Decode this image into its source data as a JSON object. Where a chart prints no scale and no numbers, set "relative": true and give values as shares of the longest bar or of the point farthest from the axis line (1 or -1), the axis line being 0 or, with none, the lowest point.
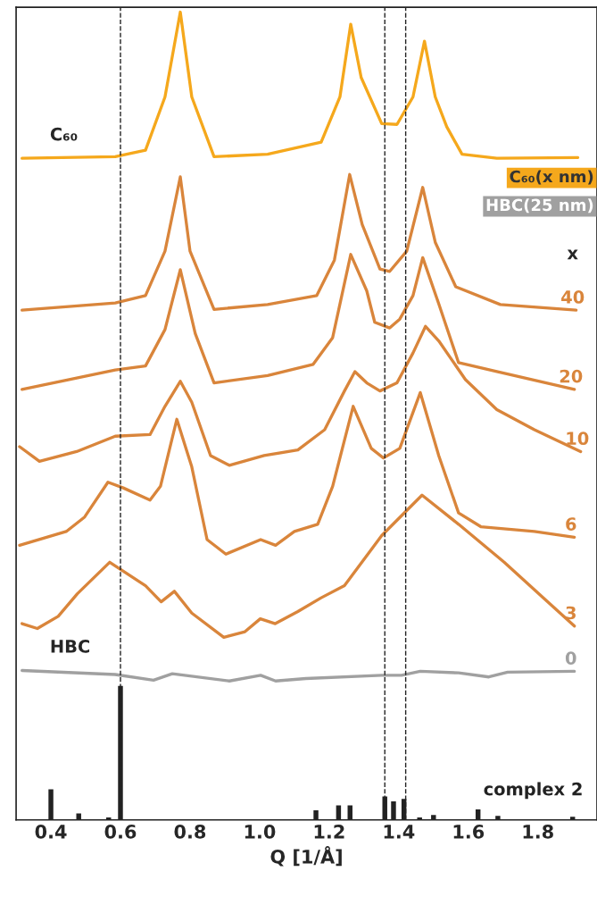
{
  "chart_data": {
    "type": "line",
    "relative": true,
    "xlabel": "Q [1/Å]",
    "xlim": [
      0.3,
      1.97
    ],
    "xticks": [
      {
        "value": 0.4,
        "label": "0.4"
      },
      {
        "value": 0.6,
        "label": "0.6"
      },
      {
        "value": 0.8,
        "label": "0.8"
      },
      {
        "value": 1.0,
        "label": "1.0"
      },
      {
        "value": 1.2,
        "label": "1.2"
      },
      {
        "value": 1.4,
        "label": "1.4"
      },
      {
        "value": 1.6,
        "label": "1.6"
      },
      {
        "value": 1.8,
        "label": "1.8"
      }
    ],
    "grid": false,
    "line_style": "solid",
    "marker": "none",
    "series": [
      {
        "color": "#f5a81c",
        "x": [
          0.317,
          0.585,
          0.672,
          0.728,
          0.772,
          0.805,
          0.869,
          1.023,
          1.177,
          1.231,
          1.262,
          1.292,
          1.351,
          1.395,
          1.441,
          1.474,
          1.505,
          1.538,
          1.582,
          1.682,
          1.915
        ],
        "values": [
          0.819,
          0.821,
          0.829,
          0.895,
          1.0,
          0.895,
          0.821,
          0.824,
          0.839,
          0.895,
          0.985,
          0.919,
          0.862,
          0.861,
          0.895,
          0.964,
          0.895,
          0.858,
          0.824,
          0.819,
          0.82
        ]
      },
      {
        "name": "40",
        "color": "#d9853b",
        "x": [
          0.317,
          0.585,
          0.672,
          0.728,
          0.772,
          0.8,
          0.869,
          1.023,
          1.164,
          1.215,
          1.259,
          1.295,
          1.346,
          1.374,
          1.423,
          1.469,
          1.505,
          1.564,
          1.692,
          1.91
        ],
        "values": [
          0.631,
          0.64,
          0.649,
          0.704,
          0.796,
          0.704,
          0.632,
          0.638,
          0.649,
          0.693,
          0.799,
          0.737,
          0.682,
          0.679,
          0.704,
          0.783,
          0.715,
          0.66,
          0.638,
          0.631
        ]
      },
      {
        "name": "20",
        "color": "#d9853b",
        "x": [
          0.317,
          0.585,
          0.672,
          0.728,
          0.772,
          0.815,
          0.869,
          1.023,
          1.154,
          1.21,
          1.262,
          1.308,
          1.331,
          1.374,
          1.403,
          1.441,
          1.469,
          1.515,
          1.572,
          1.682,
          1.905
        ],
        "values": [
          0.533,
          0.557,
          0.562,
          0.607,
          0.681,
          0.602,
          0.541,
          0.55,
          0.564,
          0.597,
          0.7,
          0.655,
          0.616,
          0.609,
          0.62,
          0.649,
          0.696,
          0.639,
          0.566,
          0.555,
          0.533
        ]
      },
      {
        "name": "10",
        "color": "#d9853b",
        "x": [
          0.31,
          0.367,
          0.474,
          0.585,
          0.685,
          0.728,
          0.772,
          0.805,
          0.859,
          0.913,
          1.013,
          1.11,
          1.187,
          1.244,
          1.274,
          1.308,
          1.346,
          1.395,
          1.441,
          1.477,
          1.515,
          1.592,
          1.682,
          1.79,
          1.923
        ],
        "values": [
          0.462,
          0.444,
          0.456,
          0.475,
          0.477,
          0.512,
          0.543,
          0.517,
          0.451,
          0.439,
          0.451,
          0.458,
          0.483,
          0.531,
          0.555,
          0.541,
          0.531,
          0.541,
          0.578,
          0.611,
          0.593,
          0.545,
          0.508,
          0.483,
          0.456
        ]
      },
      {
        "name": "6",
        "color": "#d9853b",
        "x": [
          0.31,
          0.444,
          0.497,
          0.564,
          0.608,
          0.685,
          0.715,
          0.762,
          0.805,
          0.849,
          0.903,
          1.003,
          1.046,
          1.1,
          1.167,
          1.21,
          1.269,
          1.321,
          1.356,
          1.403,
          1.462,
          1.515,
          1.572,
          1.636,
          1.79,
          1.905
        ],
        "values": [
          0.34,
          0.357,
          0.375,
          0.418,
          0.411,
          0.396,
          0.413,
          0.496,
          0.437,
          0.347,
          0.329,
          0.347,
          0.34,
          0.357,
          0.366,
          0.413,
          0.512,
          0.46,
          0.448,
          0.46,
          0.529,
          0.451,
          0.38,
          0.363,
          0.357,
          0.35
        ]
      },
      {
        "name": "3",
        "color": "#d9853b",
        "x": [
          0.317,
          0.361,
          0.421,
          0.476,
          0.569,
          0.672,
          0.717,
          0.755,
          0.805,
          0.897,
          0.958,
          1.002,
          1.045,
          1.11,
          1.177,
          1.244,
          1.351,
          1.467,
          1.572,
          1.703,
          1.813,
          1.905
        ],
        "values": [
          0.243,
          0.237,
          0.252,
          0.28,
          0.319,
          0.29,
          0.27,
          0.283,
          0.256,
          0.226,
          0.233,
          0.249,
          0.243,
          0.258,
          0.275,
          0.29,
          0.352,
          0.402,
          0.366,
          0.319,
          0.276,
          0.24
        ]
      },
      {
        "name": "0",
        "color": "#a0a0a0",
        "x": [
          0.317,
          0.585,
          0.695,
          0.749,
          0.913,
          1.003,
          1.046,
          1.133,
          1.351,
          1.408,
          1.462,
          1.572,
          1.659,
          1.713,
          1.905
        ],
        "values": [
          0.185,
          0.18,
          0.173,
          0.181,
          0.172,
          0.179,
          0.172,
          0.175,
          0.179,
          0.179,
          0.184,
          0.182,
          0.177,
          0.183,
          0.184
        ]
      },
      {
        "name": "complex 2",
        "type": "bar",
        "color": "#222222",
        "x": [
          0.4,
          0.48,
          0.566,
          0.6,
          1.162,
          1.227,
          1.26,
          1.36,
          1.385,
          1.415,
          1.46,
          1.5,
          1.628,
          1.685,
          1.9
        ],
        "values": [
          0.038,
          0.008,
          0.003,
          0.166,
          0.012,
          0.018,
          0.018,
          0.029,
          0.023,
          0.026,
          0.003,
          0.006,
          0.013,
          0.005,
          0.004
        ]
      }
    ],
    "ref_lines": [
      {
        "axis": "x",
        "value": 0.6,
        "color": "#222222",
        "line_style": "dashed"
      },
      {
        "axis": "x",
        "value": 1.36,
        "color": "#222222",
        "line_style": "dashed"
      },
      {
        "axis": "x",
        "value": 1.42,
        "color": "#222222",
        "line_style": "dashed"
      }
    ],
    "annotations": [
      "C₆₀",
      "HBC",
      "C₆₀(x nm)",
      "HBC(25 nm)",
      "x"
    ]
  }
}
